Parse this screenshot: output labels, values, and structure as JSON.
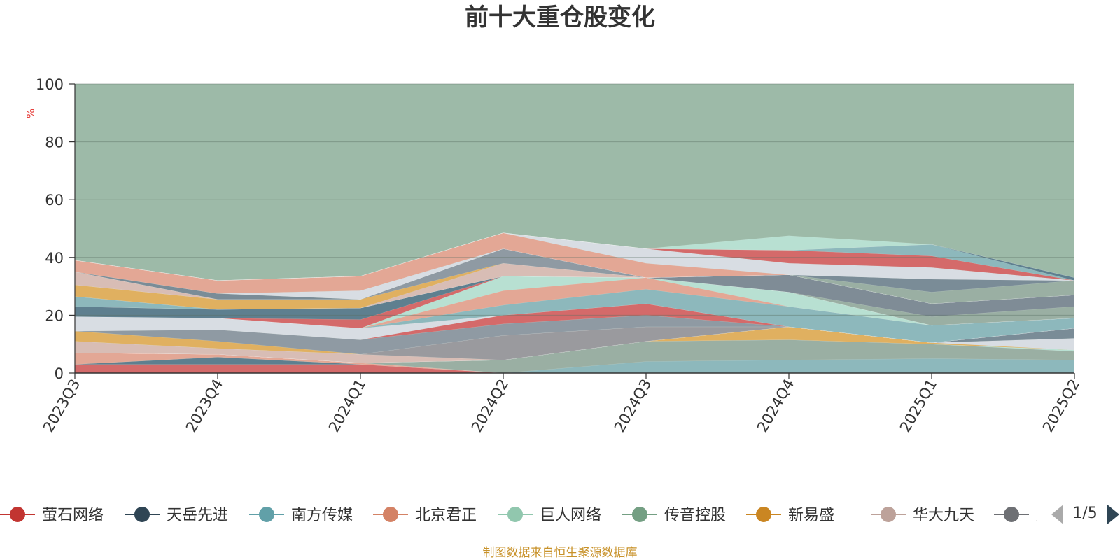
{
  "chart_data": {
    "type": "area",
    "title": "前十大重仓股变化",
    "ylabel": "%",
    "ylim": [
      0,
      100
    ],
    "y_ticks": [
      "0",
      "20",
      "40",
      "60",
      "80",
      "100"
    ],
    "categories": [
      "2023Q3",
      "2023Q4",
      "2024Q1",
      "2024Q2",
      "2024Q3",
      "2024Q4",
      "2025Q1",
      "2025Q2"
    ],
    "background_color": "#9dbaa8",
    "layers": [
      {
        "color": "#d46a6a",
        "values": [
          3,
          3,
          3,
          0,
          0,
          0,
          0,
          0
        ]
      },
      {
        "color": "#5e7f8f",
        "values": [
          0,
          2.5,
          0,
          0,
          0,
          0,
          0,
          0
        ]
      },
      {
        "color": "#e3a795",
        "values": [
          4,
          1,
          0.5,
          0,
          0,
          0,
          0,
          0
        ]
      },
      {
        "color": "#8db8bc",
        "values": [
          0,
          0,
          0,
          0,
          4,
          4.5,
          5,
          4.5
        ]
      },
      {
        "color": "#9aafa3",
        "values": [
          0,
          0,
          0,
          4.5,
          7,
          7,
          5,
          3
        ]
      },
      {
        "color": "#b8e0d2",
        "values": [
          0,
          0,
          0,
          0,
          0,
          0,
          0,
          0.5
        ]
      },
      {
        "color": "#e0b060",
        "values": [
          0,
          0,
          0,
          0,
          0,
          4.5,
          0.5,
          0
        ]
      },
      {
        "color": "#d8dde3",
        "values": [
          0,
          0,
          0,
          0,
          0,
          0,
          0,
          4
        ]
      },
      {
        "color": "#7a8c97",
        "values": [
          0,
          0,
          0,
          0,
          0,
          0,
          0,
          3.5
        ]
      },
      {
        "color": "#d8bdb5",
        "values": [
          4,
          2,
          3,
          0,
          0,
          0,
          0,
          0
        ]
      },
      {
        "color": "#9a9a9e",
        "values": [
          0,
          0,
          0,
          8.5,
          5,
          0,
          0,
          0
        ]
      },
      {
        "color": "#e0b060",
        "values": [
          3.5,
          2.5,
          0,
          0,
          0,
          0,
          0,
          0
        ]
      },
      {
        "color": "#8f9aa3",
        "values": [
          0,
          4,
          5,
          4,
          4,
          0,
          0,
          0
        ]
      },
      {
        "color": "#d46a6a",
        "values": [
          0,
          0,
          0,
          3,
          4,
          0,
          0,
          0
        ]
      },
      {
        "color": "#d8dde3",
        "values": [
          5,
          4,
          4,
          0,
          0,
          0,
          0,
          0
        ]
      },
      {
        "color": "#8db8bc",
        "values": [
          0,
          0,
          0,
          3.5,
          5,
          7,
          6,
          3.5
        ]
      },
      {
        "color": "#e3a795",
        "values": [
          0,
          0,
          0,
          5,
          4,
          0,
          0,
          0
        ]
      },
      {
        "color": "#b8e0d2",
        "values": [
          0,
          0,
          0,
          5,
          0,
          5,
          0,
          0
        ]
      },
      {
        "color": "#d46a6a",
        "values": [
          0,
          0,
          3,
          0,
          0,
          0,
          0,
          0
        ]
      },
      {
        "color": "#5e7f8f",
        "values": [
          3.5,
          3,
          4,
          0,
          0,
          0,
          0,
          0
        ]
      },
      {
        "color": "#9aafa3",
        "values": [
          0,
          0,
          0,
          0,
          0,
          0,
          3,
          4
        ]
      },
      {
        "color": "#7f8c96",
        "values": [
          0,
          0,
          0,
          0,
          0,
          6,
          4.5,
          4
        ]
      },
      {
        "color": "#8db8bc",
        "values": [
          3.5,
          0,
          0,
          0,
          0,
          0,
          0,
          0
        ]
      },
      {
        "color": "#d8bdb5",
        "values": [
          0,
          0,
          0,
          4.5,
          0,
          0,
          0,
          0
        ]
      },
      {
        "color": "#e0b060",
        "values": [
          4,
          3.5,
          3,
          0,
          0,
          0,
          0,
          0
        ]
      },
      {
        "color": "#8f9aa3",
        "values": [
          0,
          0,
          0,
          5,
          0,
          0,
          0,
          0
        ]
      },
      {
        "color": "#d8bdb5",
        "values": [
          4.5,
          0,
          0,
          0,
          0,
          0,
          0,
          0
        ]
      },
      {
        "color": "#9aafa3",
        "values": [
          0,
          0,
          0,
          0,
          0,
          0,
          4,
          5
        ]
      },
      {
        "color": "#7a8c97",
        "values": [
          0,
          2,
          0,
          0,
          0,
          0,
          4.5,
          0
        ]
      },
      {
        "color": "#d8dde3",
        "values": [
          0,
          0,
          3,
          0,
          0,
          0,
          0,
          0
        ]
      },
      {
        "color": "#e3a795",
        "values": [
          4,
          4.5,
          5,
          5.5,
          5,
          0,
          0,
          0
        ]
      },
      {
        "color": "#d8dde3",
        "values": [
          0,
          0,
          0,
          0,
          5,
          4,
          4,
          0
        ]
      },
      {
        "color": "#d46a6a",
        "values": [
          0,
          0,
          0,
          0,
          0,
          4.5,
          4,
          0
        ]
      },
      {
        "color": "#8db8bc",
        "values": [
          0,
          0,
          0,
          0,
          0,
          0,
          4,
          0
        ]
      },
      {
        "color": "#5e7f8f",
        "values": [
          0,
          0,
          0,
          0,
          0,
          0,
          0,
          1
        ]
      },
      {
        "color": "#b8e0d2",
        "values": [
          0,
          0,
          0,
          0,
          0,
          5,
          0,
          0
        ]
      }
    ],
    "legend": [
      {
        "name": "萤石网络",
        "color": "#c23531"
      },
      {
        "name": "天岳先进",
        "color": "#2f4554"
      },
      {
        "name": "南方传媒",
        "color": "#61a0a8"
      },
      {
        "name": "北京君正",
        "color": "#d48265"
      },
      {
        "name": "巨人网络",
        "color": "#91c7ae"
      },
      {
        "name": "传音控股",
        "color": "#749f83"
      },
      {
        "name": "新易盛",
        "color": "#ca8622"
      },
      {
        "name": "华大九天",
        "color": "#bda29a"
      },
      {
        "name": "鹏鼎控股",
        "color": "#6e7074"
      }
    ],
    "legend_page": "1/5",
    "source_note": "制图数据来自恒生聚源数据库"
  }
}
